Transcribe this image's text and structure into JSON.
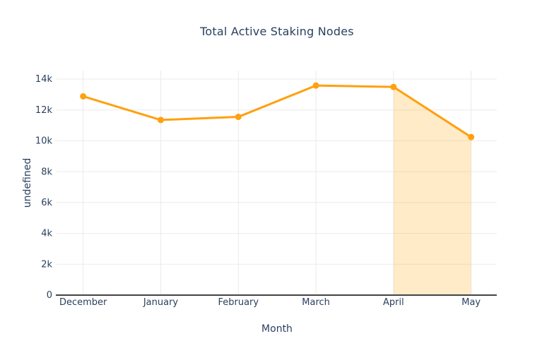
{
  "chart_data": {
    "type": "line",
    "title": "Total Active Staking Nodes",
    "xlabel": "Month",
    "ylabel": "undefined",
    "categories": [
      "December",
      "January",
      "February",
      "March",
      "April",
      "May"
    ],
    "series": [
      {
        "name": "Total Active Staking Nodes",
        "values": [
          12880,
          11350,
          11550,
          13580,
          13490,
          10240
        ]
      }
    ],
    "ylim": [
      0,
      14550
    ],
    "yticks": {
      "values": [
        0,
        2000,
        4000,
        6000,
        8000,
        10000,
        12000,
        14000
      ],
      "labels": [
        "0",
        "2k",
        "4k",
        "6k",
        "8k",
        "10k",
        "12k",
        "14k"
      ]
    },
    "grid": true,
    "legend": "none",
    "highlight_region": {
      "from": "April",
      "to": "May",
      "fill": "rgba(255,165,0,0.22)",
      "fill_to_zero": true
    },
    "colors": {
      "line": "#ffa00e",
      "marker": "#ffa00e",
      "grid": "#ebebeb",
      "axis_line": "#444444",
      "text": "#2a3f5f",
      "background": "#ffffff"
    }
  }
}
